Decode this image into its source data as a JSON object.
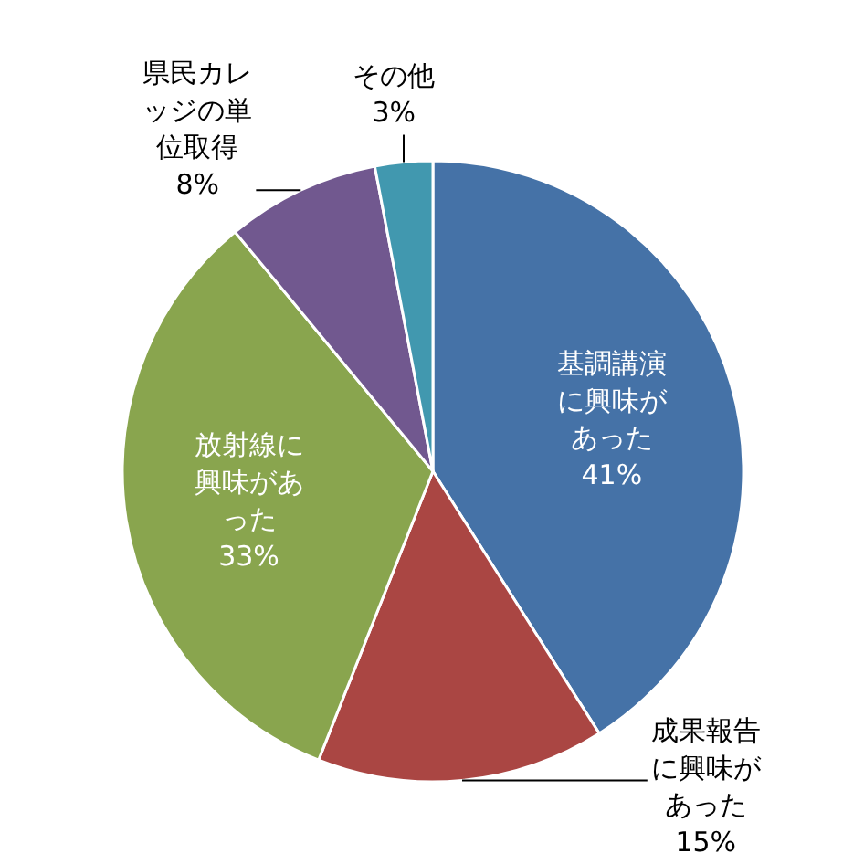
{
  "chart_data": {
    "type": "pie",
    "categories": [
      "基調講演に興味があった",
      "成果報告に興味があった",
      "放射線に興味があった",
      "県民カレッジの単位取得",
      "その他"
    ],
    "values": [
      41,
      15,
      33,
      8,
      3
    ],
    "value_labels": [
      "41%",
      "15%",
      "33%",
      "8%",
      "3%"
    ],
    "colors": [
      "#4572a7",
      "#aa4643",
      "#89a54e",
      "#71588f",
      "#4198af"
    ]
  }
}
